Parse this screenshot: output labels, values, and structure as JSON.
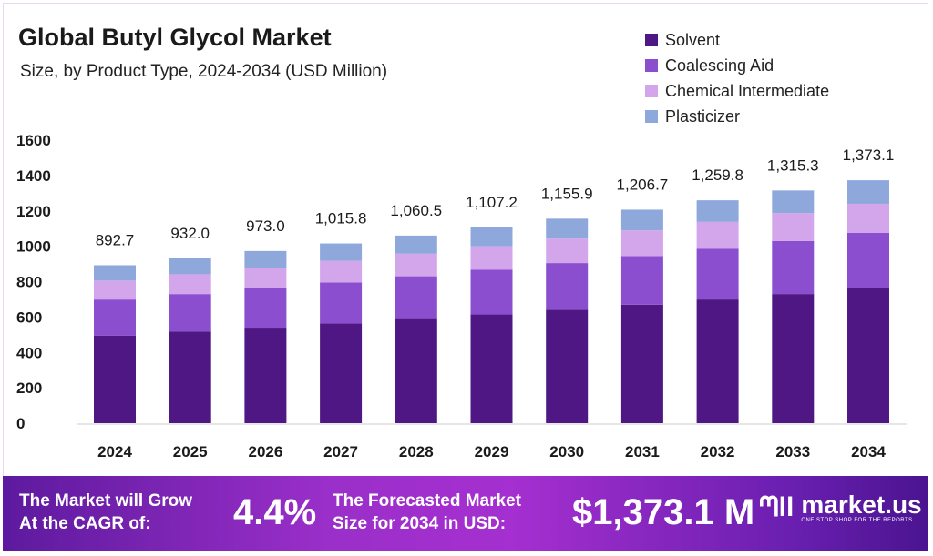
{
  "chart_data": {
    "type": "bar",
    "stacked": true,
    "title": "Global Butyl Glycol Market",
    "subtitle": "Size, by Product Type, 2024-2034 (USD Million)",
    "xlabel": "",
    "ylabel": "",
    "ylim": [
      0,
      1600
    ],
    "yticks": [
      "0",
      "200",
      "400",
      "600",
      "800",
      "1000",
      "1200",
      "1400",
      "1600"
    ],
    "ytick_values": [
      0,
      200,
      400,
      600,
      800,
      1000,
      1200,
      1400,
      1600
    ],
    "categories": [
      "2024",
      "2025",
      "2026",
      "2027",
      "2028",
      "2029",
      "2030",
      "2031",
      "2032",
      "2033",
      "2034"
    ],
    "totals": [
      892.7,
      932.0,
      973.0,
      1015.8,
      1060.5,
      1107.2,
      1155.9,
      1206.7,
      1259.8,
      1315.3,
      1373.1
    ],
    "total_labels": [
      "892.7",
      "932.0",
      "973.0",
      "1,015.8",
      "1,060.5",
      "1,107.2",
      "1,155.9",
      "1,206.7",
      "1,259.8",
      "1,315.3",
      "1,373.1"
    ],
    "legend_position": "top-right",
    "series": [
      {
        "name": "Solvent",
        "color": "#4e1783",
        "values": [
          495.4,
          517.3,
          540.0,
          563.8,
          588.6,
          614.5,
          641.5,
          669.7,
          699.2,
          730.0,
          762.1
        ]
      },
      {
        "name": "Coalescing Aid",
        "color": "#8a4ecf",
        "values": [
          203.5,
          212.5,
          221.8,
          231.6,
          241.8,
          252.4,
          263.5,
          275.1,
          287.2,
          299.9,
          313.1
        ]
      },
      {
        "name": "Chemical Intermediate",
        "color": "#d3a6ec",
        "values": [
          107.1,
          111.8,
          116.8,
          121.9,
          127.3,
          132.9,
          138.7,
          144.8,
          151.2,
          157.8,
          164.8
        ]
      },
      {
        "name": "Plasticizer",
        "color": "#8fa8dc",
        "values": [
          86.7,
          90.4,
          94.4,
          98.5,
          102.8,
          107.4,
          112.2,
          117.1,
          122.2,
          127.6,
          133.1
        ]
      }
    ]
  },
  "banner": {
    "cagr_text_1": "The Market will Grow",
    "cagr_text_2": "At the CAGR of:",
    "cagr_value": "4.4%",
    "forecast_text_1": "The Forecasted Market",
    "forecast_text_2": "Size for 2034 in USD:",
    "forecast_value": "$1,373.1 M",
    "logo_name": "market.us",
    "logo_tagline": "ONE STOP SHOP FOR THE REPORTS"
  }
}
